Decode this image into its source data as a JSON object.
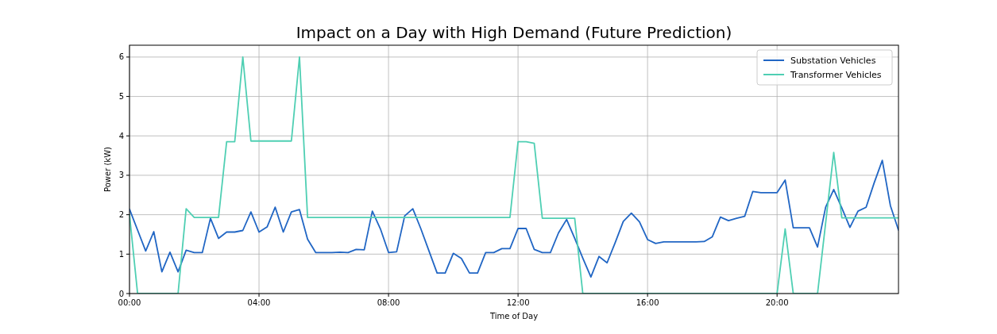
{
  "chart_data": {
    "type": "line",
    "title": "Impact on a Day with High Demand (Future Prediction)",
    "xlabel": "Time of Day",
    "ylabel": "Power (kW)",
    "x": [
      0,
      0.25,
      0.5,
      0.75,
      1,
      1.25,
      1.5,
      1.75,
      2,
      2.25,
      2.5,
      2.75,
      3,
      3.25,
      3.5,
      3.75,
      4,
      4.25,
      4.5,
      4.75,
      5,
      5.25,
      5.5,
      5.75,
      6,
      6.25,
      6.5,
      6.75,
      7,
      7.25,
      7.5,
      7.75,
      8,
      8.25,
      8.5,
      8.75,
      9,
      9.25,
      9.5,
      9.75,
      10,
      10.25,
      10.5,
      10.75,
      11,
      11.25,
      11.5,
      11.75,
      12,
      12.25,
      12.5,
      12.75,
      13,
      13.25,
      13.5,
      13.75,
      14,
      14.25,
      14.5,
      14.75,
      15,
      15.25,
      15.5,
      15.75,
      16,
      16.25,
      16.5,
      16.75,
      17,
      17.25,
      17.5,
      17.75,
      18,
      18.25,
      18.5,
      18.75,
      19,
      19.25,
      19.5,
      19.75,
      20,
      20.25,
      20.5,
      20.75,
      21,
      21.25,
      21.5,
      21.75,
      22,
      22.25,
      22.5,
      22.75,
      23,
      23.25,
      23.5,
      23.75
    ],
    "series": [
      {
        "name": "Substation Vehicles",
        "color": "#2166c4",
        "values": [
          2.14,
          1.61,
          1.08,
          1.57,
          0.55,
          1.05,
          0.55,
          1.1,
          1.04,
          1.04,
          1.91,
          1.4,
          1.56,
          1.56,
          1.6,
          2.07,
          1.56,
          1.69,
          2.19,
          1.56,
          2.07,
          2.13,
          1.38,
          1.04,
          1.04,
          1.04,
          1.05,
          1.04,
          1.12,
          1.11,
          2.09,
          1.64,
          1.04,
          1.06,
          1.97,
          2.15,
          1.64,
          1.08,
          0.52,
          0.52,
          1.02,
          0.89,
          0.52,
          0.52,
          1.04,
          1.04,
          1.14,
          1.14,
          1.65,
          1.65,
          1.12,
          1.04,
          1.04,
          1.54,
          1.88,
          1.4,
          0.9,
          0.42,
          0.94,
          0.78,
          1.29,
          1.83,
          2.04,
          1.82,
          1.37,
          1.27,
          1.31,
          1.31,
          1.31,
          1.31,
          1.31,
          1.32,
          1.44,
          1.94,
          1.85,
          1.91,
          1.96,
          2.59,
          2.56,
          2.56,
          2.56,
          2.88,
          1.67,
          1.67,
          1.67,
          1.18,
          2.19,
          2.64,
          2.17,
          1.68,
          2.09,
          2.19,
          2.81,
          3.38,
          2.23,
          1.61
        ]
      },
      {
        "name": "Transformer Vehicles",
        "color": "#4fcfb3",
        "x": [
          0,
          0.25,
          1.5,
          1.75,
          2,
          2.75,
          3,
          3.25,
          3.5,
          3.75,
          5,
          5.25,
          5.5,
          11.75,
          12,
          12.25,
          12.5,
          12.75,
          13.75,
          14,
          20,
          20.25,
          20.5,
          21.25,
          21.75,
          22,
          23.75
        ],
        "values": [
          2.0,
          0,
          0,
          2.15,
          1.93,
          1.93,
          3.85,
          3.85,
          6.0,
          3.87,
          3.87,
          6.0,
          1.93,
          1.93,
          3.85,
          3.85,
          3.81,
          1.91,
          1.91,
          0,
          0,
          1.64,
          0,
          0,
          3.58,
          1.92,
          1.92
        ]
      }
    ],
    "xlim": [
      0,
      23.75
    ],
    "xticks": [
      {
        "value": 0,
        "label": "00:00"
      },
      {
        "value": 4,
        "label": "04:00"
      },
      {
        "value": 8,
        "label": "08:00"
      },
      {
        "value": 12,
        "label": "12:00"
      },
      {
        "value": 16,
        "label": "16:00"
      },
      {
        "value": 20,
        "label": "20:00"
      }
    ],
    "ylim": [
      0,
      6.3
    ],
    "yticks": [
      0,
      1,
      2,
      3,
      4,
      5,
      6
    ],
    "grid": true,
    "legend": "top right",
    "line_style": "solid",
    "marker": "none"
  }
}
